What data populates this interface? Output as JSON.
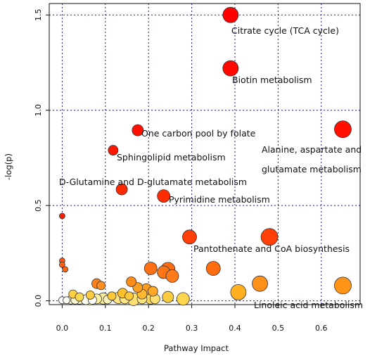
{
  "chart_data": {
    "type": "scatter",
    "title": "",
    "xlabel": "Pathway Impact",
    "ylabel": "-log(p)",
    "xlim": [
      -0.03,
      0.69
    ],
    "ylim": [
      -0.02,
      1.56
    ],
    "xticks": [
      "0.0",
      "0.1",
      "0.2",
      "0.3",
      "0.4",
      "0.5",
      "0.6"
    ],
    "yticks": [
      "0.0",
      "0.5",
      "1.0",
      "1.5"
    ],
    "grid": "dotted, blue",
    "color_scale": "white (low -log p) to yellow, orange, red (high -log p)",
    "labels": {
      "citrate": "Citrate cycle (TCA cycle)",
      "biotin": "Biotin metabolism",
      "onecarbon": "One carbon pool by folate",
      "alanine1": "Alanine, aspartate and",
      "alanine2": "glutamate metabolism",
      "sphingo": "Sphingolipid metabolism",
      "dgln": "D-Glutamine and D-glutamate metabolism",
      "pyrimidine": "Pyrimidine metabolism",
      "pantothenate": "Pantothenate and CoA biosynthesis",
      "linoleic": "Linoleic acid metabolism"
    },
    "points": [
      {
        "x": 0.0,
        "y": 0.003,
        "r": 5,
        "color": "#ffffff"
      },
      {
        "x": 0.01,
        "y": 0.003,
        "r": 5,
        "color": "#fffff4"
      },
      {
        "x": 0.02,
        "y": 0.005,
        "r": 6,
        "color": "#fffde0"
      },
      {
        "x": 0.03,
        "y": 0.005,
        "r": 6,
        "color": "#fffbd0"
      },
      {
        "x": 0.04,
        "y": 0.008,
        "r": 7,
        "color": "#fff8c0"
      },
      {
        "x": 0.055,
        "y": 0.006,
        "r": 7,
        "color": "#fffef0"
      },
      {
        "x": 0.065,
        "y": 0.008,
        "r": 8,
        "color": "#fff4b0"
      },
      {
        "x": 0.07,
        "y": 0.004,
        "r": 6,
        "color": "#ffffff"
      },
      {
        "x": 0.08,
        "y": 0.01,
        "r": 7,
        "color": "#fff0a0"
      },
      {
        "x": 0.095,
        "y": 0.012,
        "r": 8,
        "color": "#ffec98"
      },
      {
        "x": 0.105,
        "y": 0.006,
        "r": 6,
        "color": "#fff6c0"
      },
      {
        "x": 0.13,
        "y": 0.015,
        "r": 8,
        "color": "#ffe480"
      },
      {
        "x": 0.145,
        "y": 0.01,
        "r": 7,
        "color": "#ffe888"
      },
      {
        "x": 0.165,
        "y": 0.008,
        "r": 9,
        "color": "#ffe070"
      },
      {
        "x": 0.185,
        "y": 0.01,
        "r": 7,
        "color": "#ffe480"
      },
      {
        "x": 0.205,
        "y": 0.012,
        "r": 8,
        "color": "#ffd860"
      },
      {
        "x": 0.215,
        "y": 0.01,
        "r": 7,
        "color": "#ffe070"
      },
      {
        "x": 0.245,
        "y": 0.02,
        "r": 8,
        "color": "#ffcc40"
      },
      {
        "x": 0.28,
        "y": 0.01,
        "r": 9,
        "color": "#ffd64e"
      },
      {
        "x": 0.025,
        "y": 0.035,
        "r": 6,
        "color": "#ffd040"
      },
      {
        "x": 0.04,
        "y": 0.02,
        "r": 6,
        "color": "#ffd850"
      },
      {
        "x": 0.065,
        "y": 0.03,
        "r": 6,
        "color": "#ffcc40"
      },
      {
        "x": 0.115,
        "y": 0.025,
        "r": 6,
        "color": "#ffc838"
      },
      {
        "x": 0.14,
        "y": 0.04,
        "r": 7,
        "color": "#ffc030"
      },
      {
        "x": 0.155,
        "y": 0.025,
        "r": 6,
        "color": "#ffc838"
      },
      {
        "x": 0.185,
        "y": 0.035,
        "r": 7,
        "color": "#ffb830"
      },
      {
        "x": 0.175,
        "y": 0.07,
        "r": 7,
        "color": "#ffa020"
      },
      {
        "x": 0.195,
        "y": 0.06,
        "r": 8,
        "color": "#ff9c20"
      },
      {
        "x": 0.21,
        "y": 0.05,
        "r": 7,
        "color": "#ffa828"
      },
      {
        "x": 0.16,
        "y": 0.1,
        "r": 7,
        "color": "#ff8c18"
      },
      {
        "x": 0.08,
        "y": 0.09,
        "r": 7,
        "color": "#ff8018"
      },
      {
        "x": 0.09,
        "y": 0.08,
        "r": 6,
        "color": "#ff9020"
      },
      {
        "x": 0.205,
        "y": 0.17,
        "r": 9,
        "color": "#ff7014"
      },
      {
        "x": 0.235,
        "y": 0.15,
        "r": 9,
        "color": "#ff7414"
      },
      {
        "x": 0.245,
        "y": 0.165,
        "r": 10,
        "color": "#ff6c10"
      },
      {
        "x": 0.255,
        "y": 0.13,
        "r": 9,
        "color": "#ff7a18"
      },
      {
        "x": 0.35,
        "y": 0.17,
        "r": 10,
        "color": "#ff6c10"
      },
      {
        "x": 0.408,
        "y": 0.045,
        "r": 11,
        "color": "#ffb020"
      },
      {
        "x": 0.458,
        "y": 0.09,
        "r": 11,
        "color": "#ff9018"
      },
      {
        "x": 0.65,
        "y": 0.08,
        "r": 12,
        "color": "#ff9418"
      },
      {
        "x": 0.0,
        "y": 0.445,
        "r": 4,
        "color": "#ff2000"
      },
      {
        "x": 0.0,
        "y": 0.21,
        "r": 4,
        "color": "#ff5810"
      },
      {
        "x": 0.0,
        "y": 0.19,
        "r": 4,
        "color": "#ff6010"
      },
      {
        "x": 0.007,
        "y": 0.165,
        "r": 4,
        "color": "#ff6a10"
      },
      {
        "x": 0.295,
        "y": 0.335,
        "r": 10,
        "color": "#ff3e08"
      },
      {
        "x": 0.48,
        "y": 0.335,
        "r": 12,
        "color": "#ff3e08"
      },
      {
        "x": 0.138,
        "y": 0.585,
        "r": 8,
        "color": "#ff2800"
      },
      {
        "x": 0.235,
        "y": 0.55,
        "r": 9,
        "color": "#ff2c00"
      },
      {
        "x": 0.118,
        "y": 0.79,
        "r": 7,
        "color": "#ff1800"
      },
      {
        "x": 0.175,
        "y": 0.895,
        "r": 8,
        "color": "#ff1000"
      },
      {
        "x": 0.65,
        "y": 0.9,
        "r": 12,
        "color": "#ff1000"
      },
      {
        "x": 0.39,
        "y": 1.22,
        "r": 11,
        "color": "#ff0800"
      },
      {
        "x": 0.39,
        "y": 1.5,
        "r": 11,
        "color": "#ff0000"
      }
    ]
  }
}
